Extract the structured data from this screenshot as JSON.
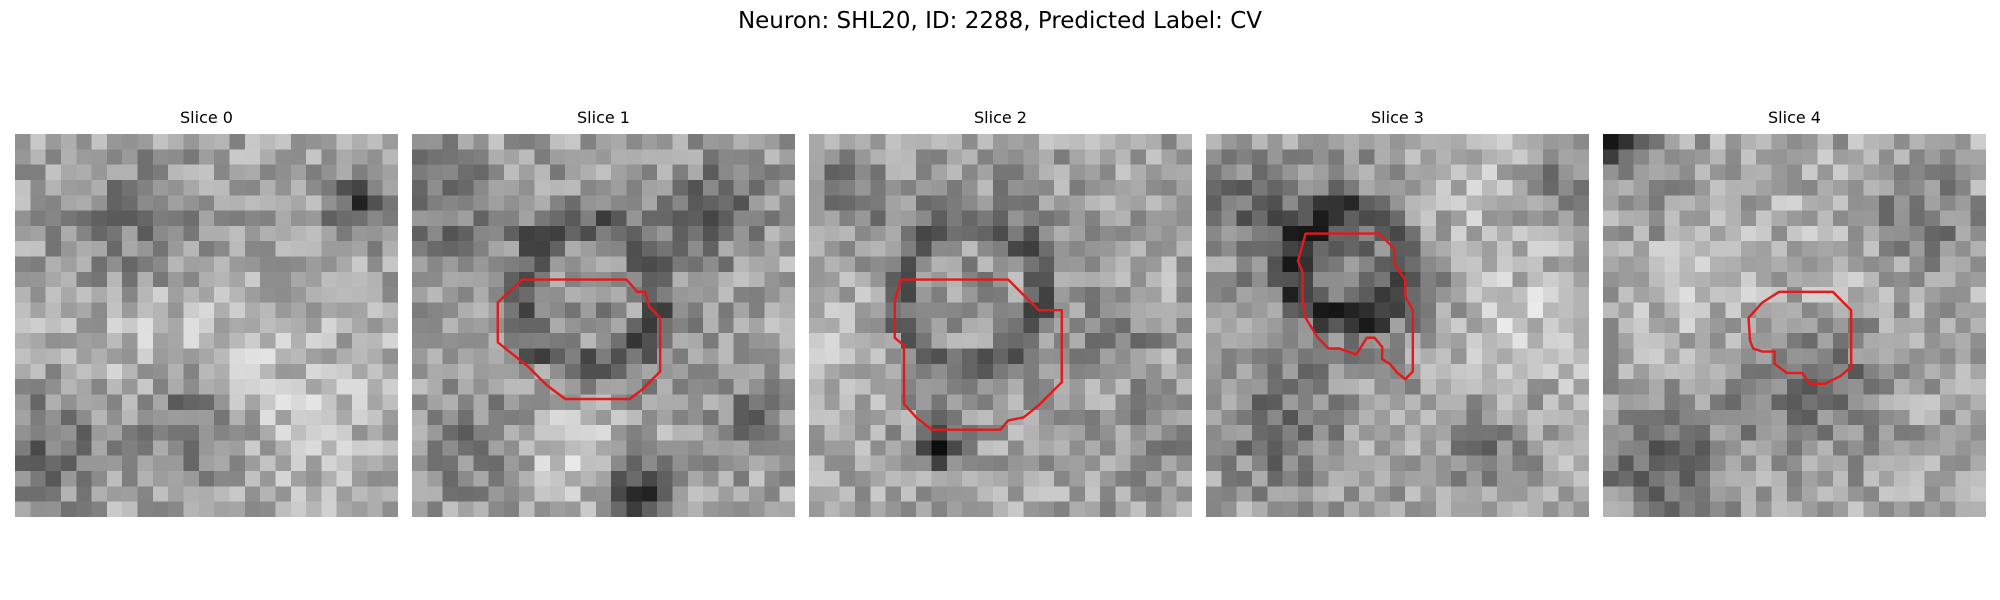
{
  "figure": {
    "title": "Neuron: SHL20, ID: 2288, Predicted Label: CV",
    "contour_color": "#e31a1c"
  },
  "panels": [
    {
      "title": "Slice 0",
      "contour": []
    },
    {
      "title": "Slice 1",
      "contour": [
        [
          10.5,
          9.5
        ],
        [
          14.0,
          9.5
        ],
        [
          14.7,
          10.3
        ],
        [
          15.2,
          10.3
        ],
        [
          15.5,
          11.3
        ],
        [
          16.2,
          12.0
        ],
        [
          16.2,
          15.5
        ],
        [
          15.0,
          16.7
        ],
        [
          14.2,
          17.3
        ],
        [
          10.0,
          17.3
        ],
        [
          8.8,
          16.4
        ],
        [
          7.6,
          15.2
        ],
        [
          5.6,
          13.6
        ],
        [
          5.6,
          11.0
        ],
        [
          7.2,
          9.5
        ]
      ]
    },
    {
      "title": "Slice 2",
      "contour": [
        [
          6.0,
          9.5
        ],
        [
          13.0,
          9.5
        ],
        [
          14.0,
          10.5
        ],
        [
          15.0,
          11.5
        ],
        [
          16.5,
          11.5
        ],
        [
          16.5,
          16.2
        ],
        [
          15.0,
          17.7
        ],
        [
          14.0,
          18.5
        ],
        [
          13.0,
          18.7
        ],
        [
          12.5,
          19.3
        ],
        [
          8.0,
          19.3
        ],
        [
          7.0,
          18.5
        ],
        [
          6.2,
          17.6
        ],
        [
          6.2,
          13.8
        ],
        [
          5.6,
          13.3
        ],
        [
          5.6,
          10.9
        ]
      ]
    },
    {
      "title": "Slice 3",
      "contour": [
        [
          6.5,
          6.5
        ],
        [
          11.3,
          6.5
        ],
        [
          12.3,
          7.5
        ],
        [
          12.3,
          8.5
        ],
        [
          13.0,
          9.5
        ],
        [
          13.0,
          10.6
        ],
        [
          13.5,
          11.5
        ],
        [
          13.5,
          15.5
        ],
        [
          13.0,
          16.0
        ],
        [
          12.5,
          15.6
        ],
        [
          12.0,
          15.0
        ],
        [
          11.5,
          14.7
        ],
        [
          11.5,
          13.9
        ],
        [
          11.0,
          13.3
        ],
        [
          10.5,
          13.3
        ],
        [
          9.8,
          14.4
        ],
        [
          8.7,
          14.0
        ],
        [
          8.0,
          14.0
        ],
        [
          7.3,
          13.3
        ],
        [
          6.5,
          12.0
        ],
        [
          6.3,
          10.7
        ],
        [
          6.3,
          9.0
        ],
        [
          6.0,
          8.3
        ]
      ]
    },
    {
      "title": "Slice 4",
      "contour": [
        [
          10.4,
          11.0
        ],
        [
          11.5,
          10.3
        ],
        [
          12.0,
          10.3
        ],
        [
          12.5,
          10.3
        ],
        [
          13.0,
          10.3
        ],
        [
          14.0,
          10.3
        ],
        [
          15.0,
          10.3
        ],
        [
          15.5,
          10.8
        ],
        [
          16.0,
          11.3
        ],
        [
          16.2,
          11.5
        ],
        [
          16.2,
          15.2
        ],
        [
          15.5,
          15.8
        ],
        [
          14.5,
          16.3
        ],
        [
          13.5,
          16.3
        ],
        [
          13.0,
          15.6
        ],
        [
          12.0,
          15.6
        ],
        [
          11.2,
          15.0
        ],
        [
          11.2,
          14.2
        ],
        [
          10.4,
          14.2
        ],
        [
          9.8,
          14.0
        ],
        [
          9.6,
          13.5
        ],
        [
          9.5,
          12.0
        ]
      ]
    }
  ]
}
